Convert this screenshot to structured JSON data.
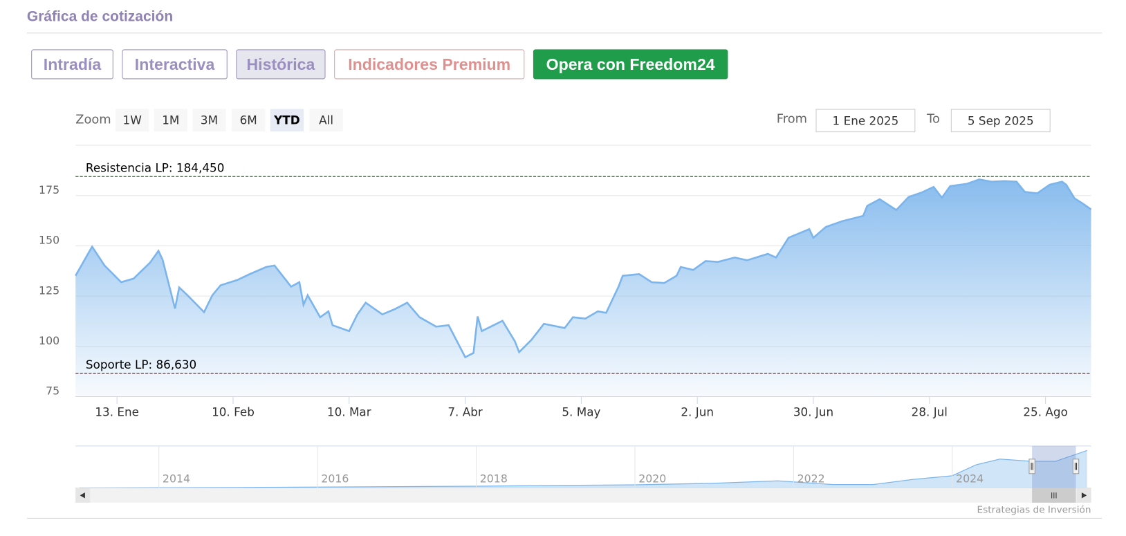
{
  "header": {
    "title": "Gráfica de cotización"
  },
  "tabs": [
    "Intradía",
    "Interactiva",
    "Histórica",
    "Indicadores Premium",
    "Opera con Freedom24"
  ],
  "active_tab": 2,
  "range_selector": {
    "label": "Zoom",
    "buttons": [
      "1W",
      "1M",
      "3M",
      "6M",
      "YTD",
      "All"
    ],
    "selected": 4,
    "from_label": "From",
    "from": "1 Ene 2025",
    "to_label": "To",
    "to": "5 Sep 2025"
  },
  "credits": "Estrategias de Inversión",
  "chart_data": [
    {
      "type": "area",
      "x": [
        "2025-01-03",
        "2025-01-07",
        "2025-01-10",
        "2025-01-14",
        "2025-01-17",
        "2025-01-21",
        "2025-01-23",
        "2025-01-24",
        "2025-01-27",
        "2025-01-28",
        "2025-01-30",
        "2025-02-03",
        "2025-02-05",
        "2025-02-07",
        "2025-02-11",
        "2025-02-14",
        "2025-02-18",
        "2025-02-20",
        "2025-02-24",
        "2025-02-26",
        "2025-02-27",
        "2025-02-28",
        "2025-03-03",
        "2025-03-05",
        "2025-03-06",
        "2025-03-10",
        "2025-03-12",
        "2025-03-14",
        "2025-03-18",
        "2025-03-21",
        "2025-03-24",
        "2025-03-27",
        "2025-03-31",
        "2025-04-03",
        "2025-04-07",
        "2025-04-09",
        "2025-04-10",
        "2025-04-11",
        "2025-04-16",
        "2025-04-19",
        "2025-04-20",
        "2025-04-23",
        "2025-04-26",
        "2025-05-01",
        "2025-05-03",
        "2025-05-06",
        "2025-05-09",
        "2025-05-11",
        "2025-05-14",
        "2025-05-15",
        "2025-05-19",
        "2025-05-22",
        "2025-05-25",
        "2025-05-28",
        "2025-05-29",
        "2025-06-01",
        "2025-06-04",
        "2025-06-07",
        "2025-06-11",
        "2025-06-14",
        "2025-06-19",
        "2025-06-21",
        "2025-06-24",
        "2025-06-29",
        "2025-06-30",
        "2025-07-03",
        "2025-07-07",
        "2025-07-12",
        "2025-07-13",
        "2025-07-16",
        "2025-07-20",
        "2025-07-23",
        "2025-07-26",
        "2025-07-29",
        "2025-07-31",
        "2025-08-02",
        "2025-08-06",
        "2025-08-09",
        "2025-08-12",
        "2025-08-15",
        "2025-08-18",
        "2025-08-20",
        "2025-08-23",
        "2025-08-26",
        "2025-08-29",
        "2025-08-30",
        "2025-09-01",
        "2025-09-03",
        "2025-09-05"
      ],
      "values": [
        135.1,
        149.6,
        140.2,
        131.9,
        133.7,
        141.7,
        147.5,
        143.1,
        118.8,
        129.3,
        125.4,
        117,
        125.4,
        130.4,
        133,
        135.9,
        139.5,
        140.2,
        129.7,
        131.9,
        120.7,
        125.4,
        114.5,
        117.4,
        110.5,
        107.6,
        115.9,
        121.7,
        115.9,
        118.5,
        121.7,
        114.5,
        109.8,
        110.5,
        94.6,
        96.7,
        114.9,
        107.6,
        112.7,
        102.5,
        97.1,
        103.3,
        111.2,
        109.1,
        114.5,
        113.8,
        117.4,
        116.7,
        129.7,
        135.1,
        135.9,
        131.9,
        131.5,
        135.1,
        139.5,
        138,
        142.4,
        142,
        144.2,
        142.8,
        146,
        144.2,
        154,
        158.3,
        154,
        159.4,
        162.3,
        164.9,
        169.9,
        173.2,
        167.8,
        174.3,
        176.4,
        179.3,
        173.9,
        179.7,
        180.8,
        183,
        181.9,
        182.2,
        181.9,
        176.8,
        176.1,
        180.4,
        181.9,
        180.4,
        173.6,
        171,
        168.1
      ],
      "color": "#7cb5ec",
      "xlim": [
        "2025-01-03",
        "2025-09-05"
      ],
      "xticks": [
        {
          "value": "2025-01-13",
          "label": "13. Ene"
        },
        {
          "value": "2025-02-10",
          "label": "10. Feb"
        },
        {
          "value": "2025-03-10",
          "label": "10. Mar"
        },
        {
          "value": "2025-04-07",
          "label": "7. Abr"
        },
        {
          "value": "2025-05-05",
          "label": "5. May"
        },
        {
          "value": "2025-06-02",
          "label": "2. Jun"
        },
        {
          "value": "2025-06-30",
          "label": "30. Jun"
        },
        {
          "value": "2025-07-28",
          "label": "28. Jul"
        },
        {
          "value": "2025-08-25",
          "label": "25. Ago"
        }
      ],
      "ylim": [
        75,
        200
      ],
      "yticks": [
        75,
        100,
        125,
        150,
        175
      ],
      "grid": true,
      "plot_lines": [
        {
          "label": "Resistencia LP: 184,450",
          "value": 184.45,
          "color": "#2e6b2e"
        },
        {
          "label": "Soporte LP: 86,630",
          "value": 86.63,
          "color": "#8b1a1a"
        }
      ]
    },
    {
      "type": "area",
      "x": [
        2013,
        2014,
        2015,
        2016,
        2017,
        2018,
        2019,
        2020,
        2021,
        2021.8,
        2022.5,
        2023,
        2023.5,
        2024,
        2024.3,
        2024.6,
        2025,
        2025.3,
        2025.7
      ],
      "values": [
        1,
        2,
        3,
        5,
        7,
        9,
        12,
        15,
        22,
        33,
        16,
        16,
        39,
        56,
        105,
        131,
        121,
        121,
        170
      ],
      "color": "#7cb5ec",
      "xlim": [
        2012.95,
        2025.75
      ],
      "xticks": [
        2014,
        2016,
        2018,
        2020,
        2022,
        2024
      ],
      "ylim": [
        0,
        190
      ],
      "grid": true
    }
  ]
}
